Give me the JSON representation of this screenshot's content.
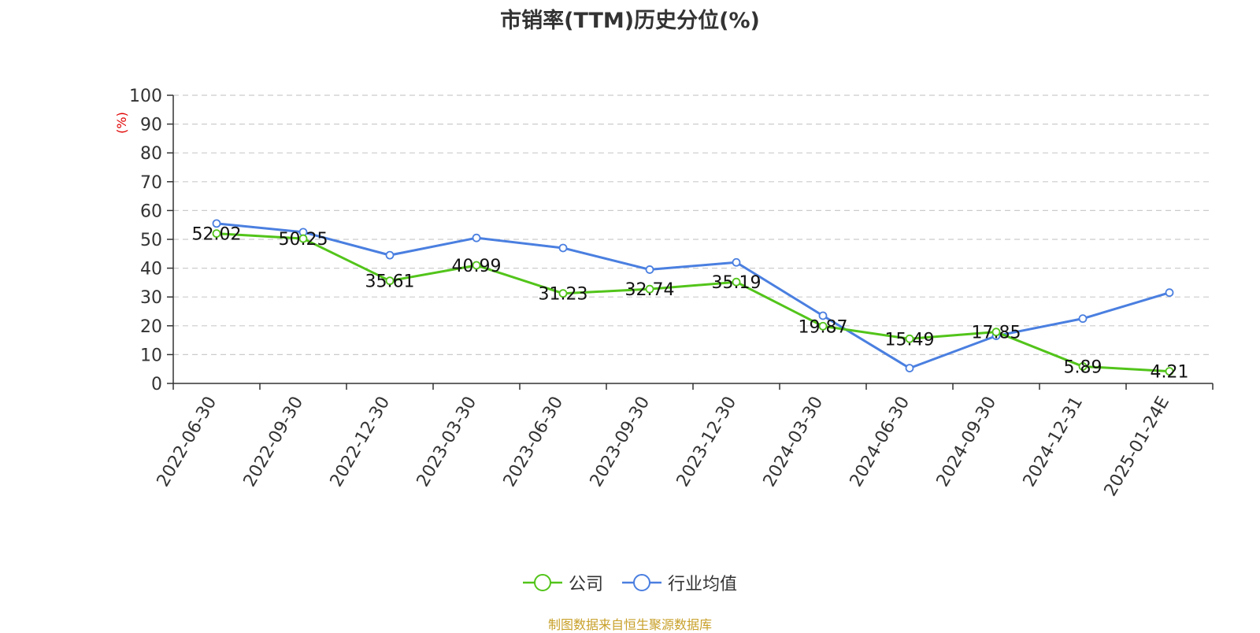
{
  "chart_data": {
    "type": "line",
    "title": "市销率(TTM)历史分位(%)",
    "ylabel": "(%)",
    "xlabel": "",
    "ylim": [
      0,
      100
    ],
    "yticks": [
      0,
      10,
      20,
      30,
      40,
      50,
      60,
      70,
      80,
      90,
      100
    ],
    "grid": true,
    "legend_position": "bottom-center",
    "categories": [
      "2022-06-30",
      "2022-09-30",
      "2022-12-30",
      "2023-03-30",
      "2023-06-30",
      "2023-09-30",
      "2023-12-30",
      "2024-03-30",
      "2024-06-30",
      "2024-09-30",
      "2024-12-31",
      "2025-01-24E"
    ],
    "series": [
      {
        "name": "公司",
        "color": "#52c41a",
        "values": [
          52.02,
          50.25,
          35.61,
          40.99,
          31.23,
          32.74,
          35.19,
          19.87,
          15.49,
          17.85,
          5.89,
          4.21
        ],
        "labels": [
          "52.02",
          "50.25",
          "35.61",
          "40.99",
          "31.23",
          "32.74",
          "35.19",
          "19.87",
          "15.49",
          "17.85",
          "5.89",
          "4.21"
        ]
      },
      {
        "name": "行业均值",
        "color": "#4a7fe0",
        "values": [
          55.5,
          52.5,
          44.5,
          50.5,
          47.0,
          39.5,
          42.0,
          23.5,
          5.3,
          16.5,
          22.5,
          31.5
        ]
      }
    ],
    "source": "制图数据来自恒生聚源数据库"
  }
}
